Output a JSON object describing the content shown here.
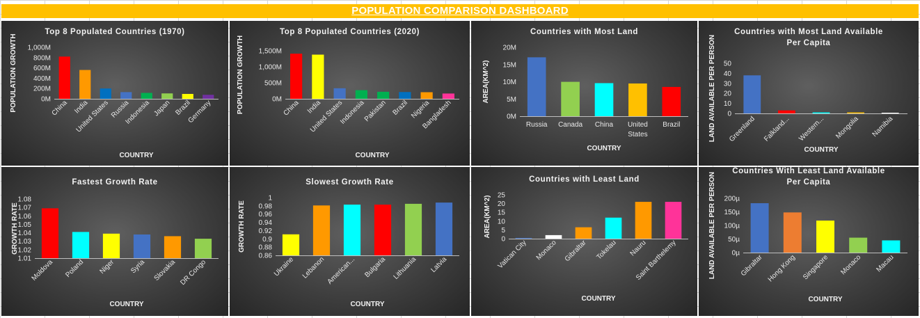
{
  "dashboard": {
    "title": "POPULATION COMPARISON DASHBOARD"
  },
  "colors": {
    "red": "#ff0000",
    "orange": "#ff9900",
    "blue": "#4472c4",
    "green": "#92d050",
    "yellow": "#ffff00",
    "cyan": "#00ffff",
    "grey": "#a6a6a6",
    "purple": "#7030a0",
    "white": "#ffffff",
    "pink": "#ff3399",
    "darkorange": "#ed7d31",
    "lightgreen": "#00b050"
  },
  "chart_data": [
    {
      "type": "bar",
      "title": [
        "Top 8 Populated Countries (1970)"
      ],
      "xlabel": "COUNTRY",
      "ylabel": "POPULATION GROWTH",
      "categories": [
        "China",
        "India",
        "United States",
        "Russia",
        "Indonesia",
        "Japan",
        "Brazil",
        "Germany"
      ],
      "values": [
        820,
        560,
        200,
        130,
        115,
        105,
        95,
        78
      ],
      "bar_colors": [
        "#ff0000",
        "#ff9900",
        "#0070c0",
        "#4472c4",
        "#00b050",
        "#92d050",
        "#ffff00",
        "#7030a0"
      ],
      "ylim": [
        0,
        1000
      ],
      "ticks": [
        "0M",
        "200M",
        "400M",
        "600M",
        "800M",
        "1,000M"
      ],
      "grid": false
    },
    {
      "type": "bar",
      "title": [
        "Top 8 Populated Countries (2020)"
      ],
      "xlabel": "COUNTRY",
      "ylabel": "POPULATION GROWTH",
      "categories": [
        "China",
        "India",
        "United States",
        "Indonesia",
        "Pakistan",
        "Brazil",
        "Nigeria",
        "Bangladesh"
      ],
      "values": [
        1410,
        1380,
        330,
        270,
        220,
        212,
        206,
        165
      ],
      "bar_colors": [
        "#ff0000",
        "#ffff00",
        "#4472c4",
        "#00b050",
        "#00b050",
        "#0070c0",
        "#ff9900",
        "#ff3399"
      ],
      "ylim": [
        0,
        1500
      ],
      "ticks": [
        "0M",
        "500M",
        "1,000M",
        "1,500M"
      ],
      "grid": false
    },
    {
      "type": "bar",
      "title": [
        "Countries with Most Land"
      ],
      "xlabel": "COUNTRY",
      "ylabel": "AREA(KM^2)",
      "categories": [
        "Russia",
        "Canada",
        "China",
        "United States",
        "Brazil"
      ],
      "values": [
        17.1,
        9.98,
        9.6,
        9.5,
        8.5
      ],
      "bar_colors": [
        "#4472c4",
        "#92d050",
        "#00ffff",
        "#ffc000",
        "#ff0000"
      ],
      "ylim": [
        0,
        20
      ],
      "ticks": [
        "0M",
        "5M",
        "10M",
        "15M",
        "20M"
      ],
      "grid": false
    },
    {
      "type": "bar",
      "title": [
        "Countries with Most Land Available",
        "Per Capita"
      ],
      "xlabel": "COUNTRY",
      "ylabel": "LAND AVAILABLE PER PERSON",
      "categories": [
        "Greenland",
        "Falkland...",
        "Western...",
        "Mongolia",
        "Namibia"
      ],
      "values": [
        38,
        3,
        1,
        1,
        0.5
      ],
      "bar_colors": [
        "#4472c4",
        "#ff0000",
        "#00ffff",
        "#ffc000",
        "#ffffff"
      ],
      "ylim": [
        0,
        50
      ],
      "ticks": [
        "0",
        "10",
        "20",
        "30",
        "40",
        "50"
      ],
      "grid": false
    },
    {
      "type": "bar",
      "title": [
        "Fastest Growth Rate"
      ],
      "xlabel": "COUNTRY",
      "ylabel": "GROWTH RATE",
      "categories": [
        "Moldova",
        "Poland",
        "Niger",
        "Syria",
        "Slovakia",
        "DR Congo"
      ],
      "values": [
        1.069,
        1.041,
        1.039,
        1.038,
        1.036,
        1.033
      ],
      "bar_colors": [
        "#ff0000",
        "#00ffff",
        "#ffff00",
        "#4472c4",
        "#ff9900",
        "#92d050"
      ],
      "ylim": [
        1.01,
        1.08
      ],
      "ticks": [
        "1.01",
        "1.02",
        "1.03",
        "1.04",
        "1.05",
        "1.06",
        "1.07",
        "1.08"
      ],
      "grid": false
    },
    {
      "type": "bar",
      "title": [
        "Slowest Growth Rate"
      ],
      "xlabel": "COUNTRY",
      "ylabel": "GROWTH RATE",
      "categories": [
        "Ukraine",
        "Lebanon",
        "American...",
        "Bulgaria",
        "Lithuania",
        "Latvia"
      ],
      "values": [
        0.911,
        0.981,
        0.983,
        0.983,
        0.985,
        0.988
      ],
      "bar_colors": [
        "#ffff00",
        "#ff9900",
        "#00ffff",
        "#ff0000",
        "#92d050",
        "#4472c4"
      ],
      "ylim": [
        0.86,
        1
      ],
      "ticks": [
        "0.86",
        "0.88",
        "0.9",
        "0.92",
        "0.94",
        "0.96",
        "0.98",
        "1"
      ],
      "grid": false
    },
    {
      "type": "bar",
      "title": [
        "Countries with Least Land"
      ],
      "xlabel": "COUNTRY",
      "ylabel": "AREA(KM^2)",
      "categories": [
        "Vatican City",
        "Monaco",
        "Gibraltar",
        "Tokelau",
        "Nauru",
        "Saint Barthelemy"
      ],
      "values": [
        0.44,
        2.02,
        6.5,
        12,
        21,
        21
      ],
      "bar_colors": [
        "#4472c4",
        "#ffffff",
        "#ff9900",
        "#00ffff",
        "#ff9900",
        "#ff3399"
      ],
      "ylim": [
        0,
        25
      ],
      "ticks": [
        "0",
        "5",
        "10",
        "15",
        "20",
        "25"
      ],
      "grid": false
    },
    {
      "type": "bar",
      "title": [
        "Countries With Least Land Available",
        "Per Capita"
      ],
      "xlabel": "COUNTRY",
      "ylabel": "LAND AVAILABLE PER PERSON",
      "categories": [
        "Gibraltar",
        "Hong Kong",
        "Singapore",
        "Monaco",
        "Macau"
      ],
      "values": [
        182,
        148,
        118,
        55,
        45
      ],
      "bar_colors": [
        "#4472c4",
        "#ed7d31",
        "#ffff00",
        "#92d050",
        "#00ffff"
      ],
      "ylim": [
        0,
        200
      ],
      "ticks": [
        "0µ",
        "50µ",
        "100µ",
        "150µ",
        "200µ"
      ],
      "grid": false
    }
  ]
}
